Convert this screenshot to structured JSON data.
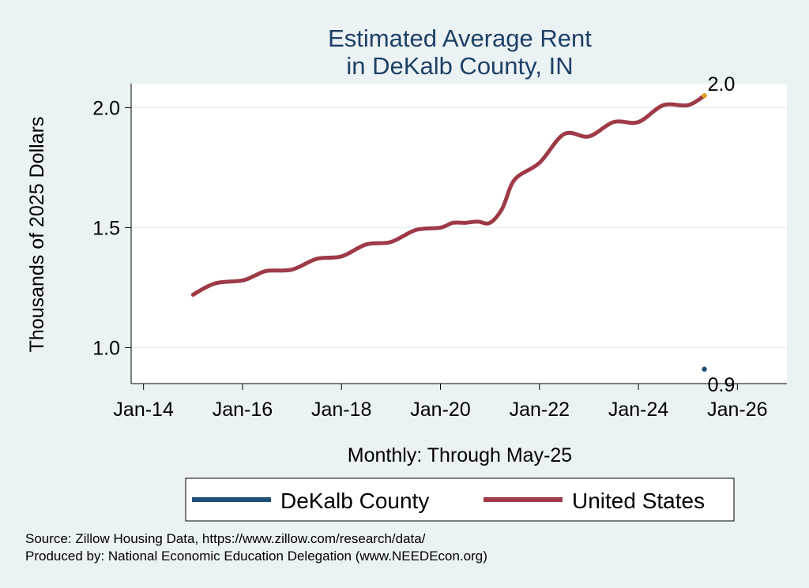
{
  "chart_data": {
    "type": "line",
    "title": [
      "Estimated Average Rent",
      "in DeKalb County, IN"
    ],
    "ylabel": "Thousands of 2025 Dollars",
    "xlabel": "Monthly: Through May-25",
    "x_ticks": [
      "Jan-14",
      "Jan-16",
      "Jan-18",
      "Jan-20",
      "Jan-22",
      "Jan-24",
      "Jan-26"
    ],
    "y_ticks": [
      "1.0",
      "1.5",
      "2.0"
    ],
    "xlim": [
      "2013-10",
      "2027-01"
    ],
    "ylim": [
      0.85,
      2.1
    ],
    "grid": true,
    "legend_position": "bottom",
    "series": [
      {
        "name": "DeKalb County",
        "color": "#1f4e79",
        "points": [
          {
            "x": "2025-05",
            "y": 0.91
          }
        ],
        "end_label": "0.9"
      },
      {
        "name": "United States",
        "color": "#9e3a47",
        "points": [
          {
            "x": "2015-01",
            "y": 1.22
          },
          {
            "x": "2015-04",
            "y": 1.25
          },
          {
            "x": "2015-07",
            "y": 1.27
          },
          {
            "x": "2016-01",
            "y": 1.28
          },
          {
            "x": "2016-04",
            "y": 1.3
          },
          {
            "x": "2016-07",
            "y": 1.32
          },
          {
            "x": "2017-01",
            "y": 1.325
          },
          {
            "x": "2017-07",
            "y": 1.37
          },
          {
            "x": "2018-01",
            "y": 1.38
          },
          {
            "x": "2018-07",
            "y": 1.43
          },
          {
            "x": "2019-01",
            "y": 1.44
          },
          {
            "x": "2019-07",
            "y": 1.49
          },
          {
            "x": "2020-01",
            "y": 1.5
          },
          {
            "x": "2020-04",
            "y": 1.52
          },
          {
            "x": "2020-07",
            "y": 1.52
          },
          {
            "x": "2020-10",
            "y": 1.525
          },
          {
            "x": "2021-01",
            "y": 1.52
          },
          {
            "x": "2021-04",
            "y": 1.58
          },
          {
            "x": "2021-07",
            "y": 1.7
          },
          {
            "x": "2022-01",
            "y": 1.77
          },
          {
            "x": "2022-07",
            "y": 1.89
          },
          {
            "x": "2023-01",
            "y": 1.88
          },
          {
            "x": "2023-07",
            "y": 1.94
          },
          {
            "x": "2024-01",
            "y": 1.94
          },
          {
            "x": "2024-07",
            "y": 2.01
          },
          {
            "x": "2025-01",
            "y": 2.01
          },
          {
            "x": "2025-05",
            "y": 2.05
          }
        ],
        "end_label": "2.0",
        "end_marker_color": "#e0a020"
      }
    ]
  },
  "footer": {
    "source": "Source: Zillow Housing Data, https://www.zillow.com/research/data/",
    "produced_by": "Produced by: National Economic Education Delegation (www.NEEDEcon.org)"
  }
}
